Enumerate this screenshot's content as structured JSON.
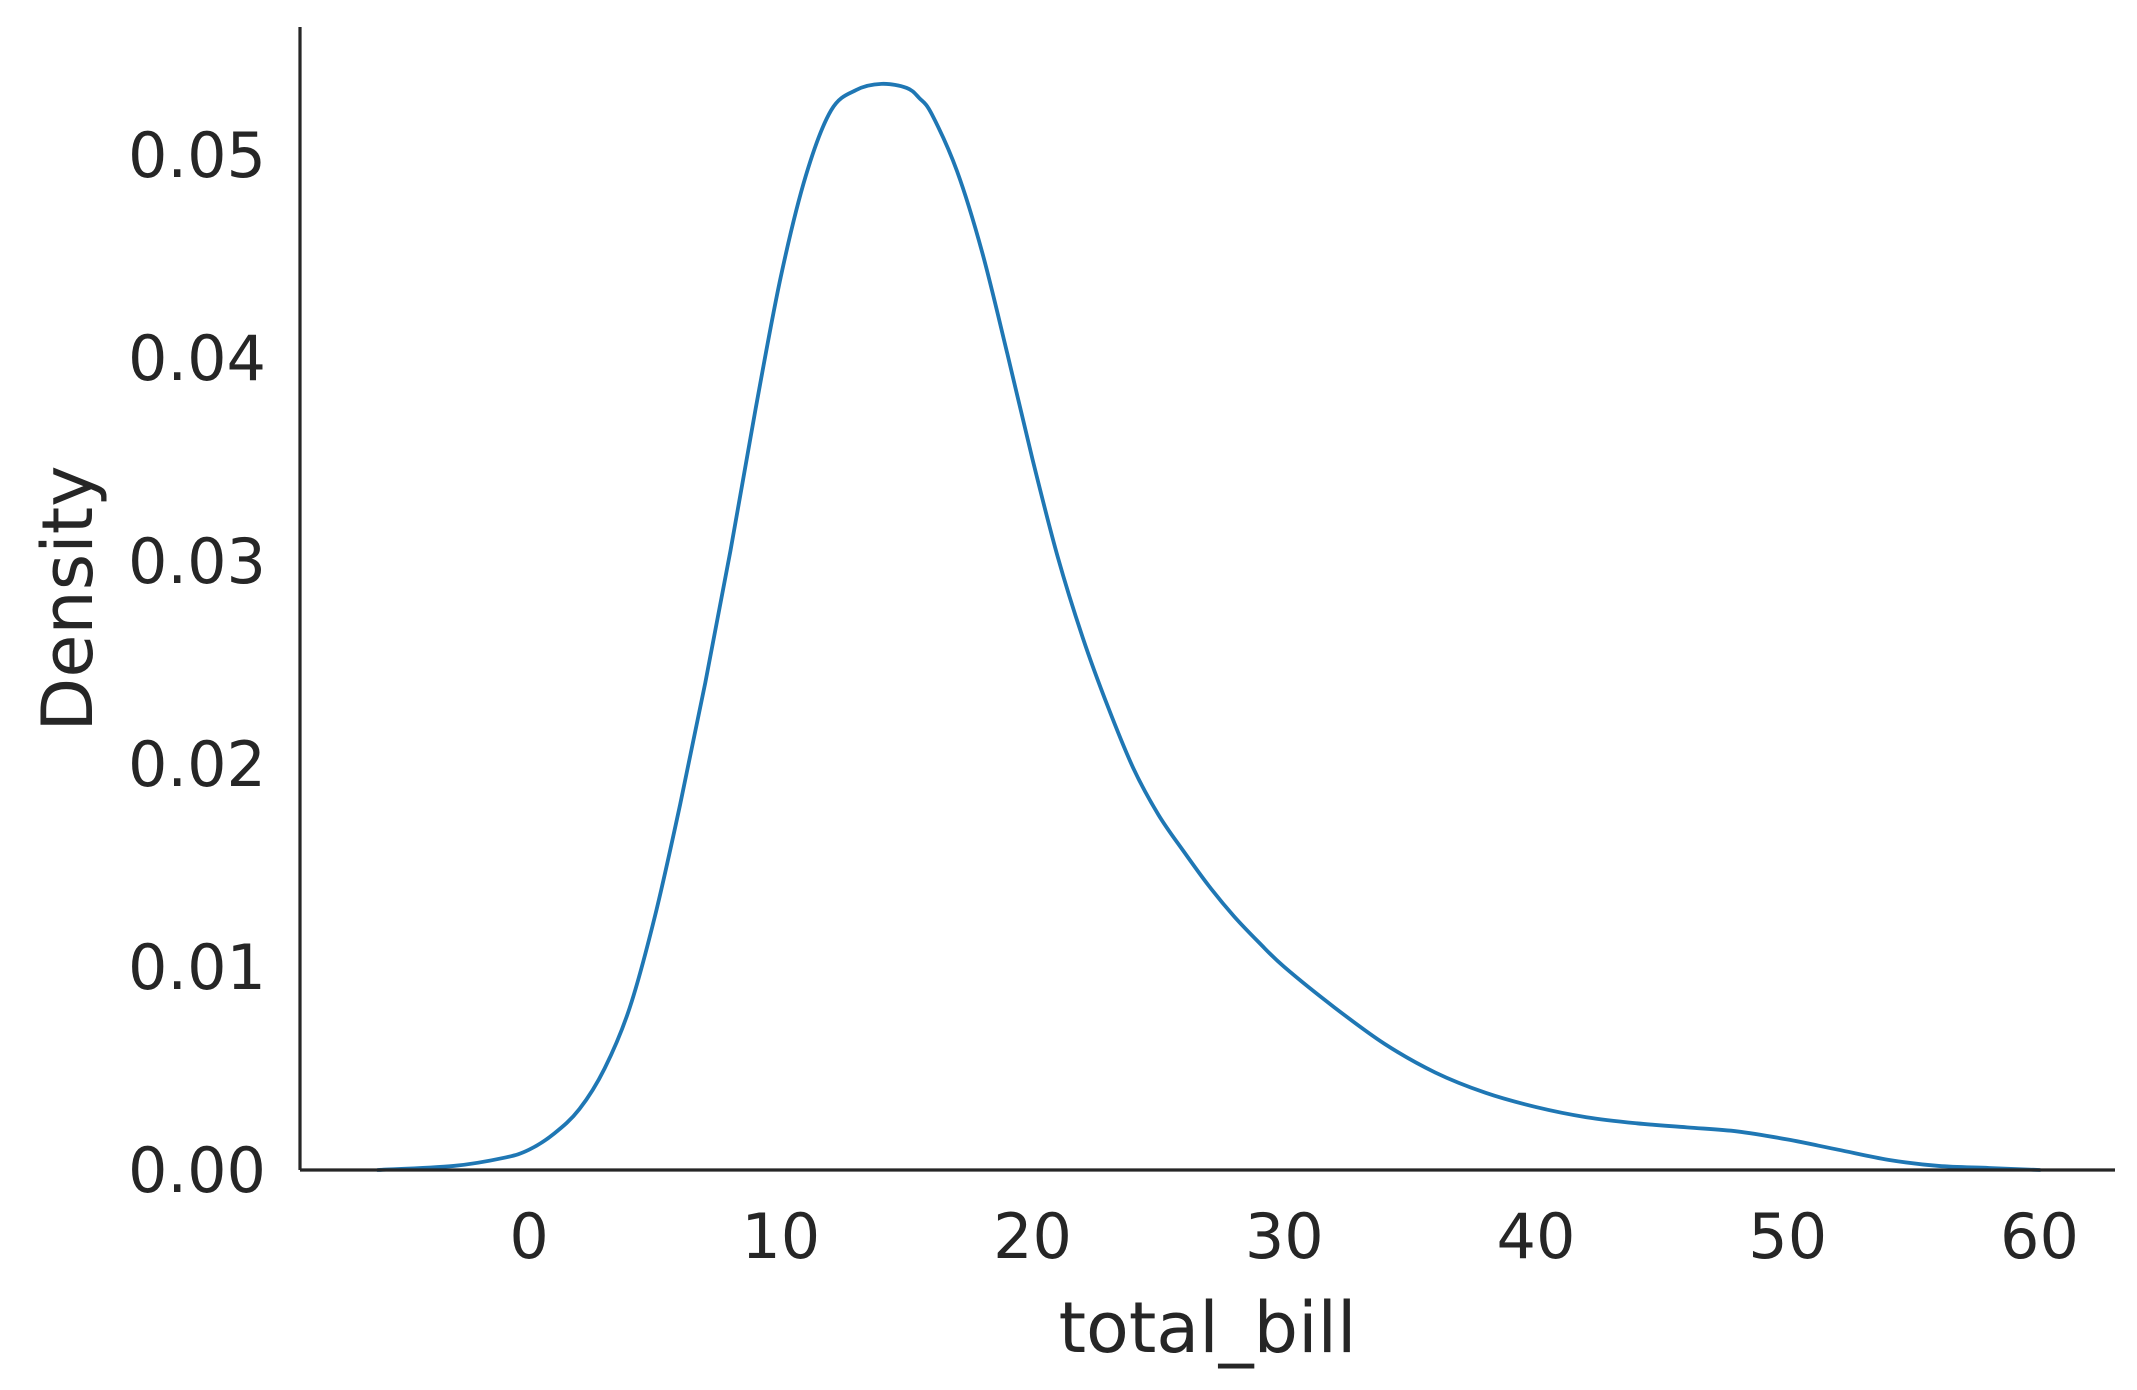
{
  "chart_data": {
    "type": "line",
    "title": "",
    "xlabel": "total_bill",
    "ylabel": "Density",
    "xlim": [
      -9.1,
      63.0
    ],
    "ylim": [
      0.0,
      0.0563
    ],
    "x_ticks": [
      0,
      10,
      20,
      30,
      40,
      50,
      60
    ],
    "x_tick_labels": [
      "0",
      "10",
      "20",
      "30",
      "40",
      "50",
      "60"
    ],
    "y_ticks": [
      0.0,
      0.01,
      0.02,
      0.03,
      0.04,
      0.05
    ],
    "y_tick_labels": [
      "0.00",
      "0.01",
      "0.02",
      "0.03",
      "0.04",
      "0.05"
    ],
    "grid": false,
    "legend": null,
    "color": "#1f77b4",
    "series": [
      {
        "x": [
          -6.0,
          -3.0,
          -1.0,
          0.0,
          1.0,
          2.0,
          3.0,
          4.0,
          5.0,
          6.0,
          7.0,
          8.0,
          9.0,
          10.0,
          11.0,
          12.0,
          13.0,
          14.0,
          15.0,
          15.5,
          16.0,
          17.0,
          18.0,
          19.0,
          20.0,
          21.0,
          22.0,
          23.0,
          24.0,
          25.0,
          26.0,
          27.0,
          28.0,
          29.0,
          30.0,
          32.0,
          34.0,
          36.0,
          38.0,
          40.0,
          42.0,
          44.0,
          46.0,
          48.0,
          50.0,
          52.0,
          54.0,
          56.0,
          58.0,
          60.0
        ],
        "y": [
          0.0,
          0.0002,
          0.0006,
          0.001,
          0.0018,
          0.003,
          0.005,
          0.008,
          0.0125,
          0.018,
          0.024,
          0.0305,
          0.0375,
          0.044,
          0.049,
          0.0522,
          0.0532,
          0.0535,
          0.0533,
          0.0528,
          0.052,
          0.0492,
          0.0452,
          0.0402,
          0.035,
          0.0302,
          0.0262,
          0.0228,
          0.0198,
          0.0175,
          0.0157,
          0.014,
          0.0125,
          0.0112,
          0.01,
          0.008,
          0.0062,
          0.0048,
          0.0038,
          0.0031,
          0.0026,
          0.0023,
          0.0021,
          0.0019,
          0.0015,
          0.001,
          0.0005,
          0.0002,
          0.0001,
          0.0
        ]
      }
    ]
  }
}
